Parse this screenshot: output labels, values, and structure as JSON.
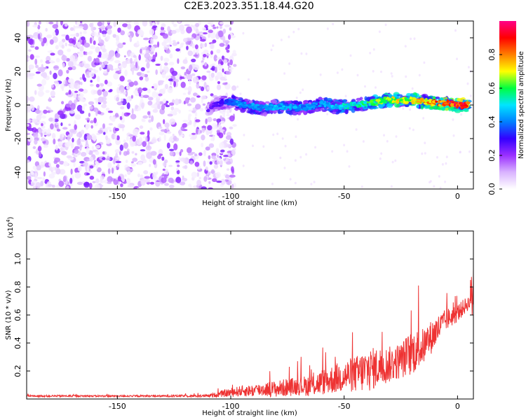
{
  "figure": {
    "title": "C2E3.2023.351.18.44.G20"
  },
  "chart_data": [
    {
      "type": "heatmap",
      "xlabel": "Height of straight line (km)",
      "ylabel": "Frequency (Hz)",
      "xlim": [
        -190,
        7
      ],
      "ylim": [
        -50,
        50
      ],
      "x_ticks": [
        -150,
        -100,
        -50,
        0
      ],
      "x_tick_labels": [
        "-150",
        "-100",
        "-50",
        "0"
      ],
      "y_ticks": [
        -40,
        -20,
        0,
        20,
        40
      ],
      "y_tick_labels": [
        "-40",
        "-20",
        "0",
        "20",
        "40"
      ],
      "colorbar": {
        "label": "Normalized spectral amplitude",
        "range": [
          0,
          1
        ],
        "ticks": [
          0.0,
          0.2,
          0.4,
          0.6,
          0.8
        ],
        "tick_labels": [
          "0.0",
          "0.2",
          "0.4",
          "0.6",
          "0.8"
        ],
        "colormap": [
          "#ffffff",
          "#d9b3ff",
          "#9b30ff",
          "#3300ff",
          "#0080ff",
          "#00e5ff",
          "#00ff40",
          "#ffff00",
          "#ff7f00",
          "#ff0000",
          "#ff0088"
        ]
      },
      "noise_region_x": [
        -190,
        -100
      ],
      "signal_track": {
        "x": [
          -110,
          -105,
          -100,
          -95,
          -90,
          -85,
          -80,
          -75,
          -70,
          -65,
          -60,
          -55,
          -50,
          -45,
          -40,
          -35,
          -30,
          -25,
          -20,
          -15,
          -10,
          -5,
          0,
          5
        ],
        "freq": [
          -2,
          1,
          2,
          0,
          -1,
          -2,
          -1,
          -1,
          -2,
          -1,
          1,
          -1,
          -1,
          0,
          1,
          2,
          3,
          3,
          3,
          2,
          1,
          1,
          0,
          0
        ],
        "amplitude": [
          0.25,
          0.3,
          0.4,
          0.45,
          0.45,
          0.45,
          0.5,
          0.45,
          0.45,
          0.45,
          0.45,
          0.5,
          0.55,
          0.55,
          0.6,
          0.65,
          0.7,
          0.75,
          0.75,
          0.8,
          0.85,
          0.9,
          0.95,
          0.9
        ]
      }
    },
    {
      "type": "line",
      "xlabel": "Height of straight line (km)",
      "ylabel": "SNR (10 * v/v)",
      "y_multiplier_label": "(x10",
      "y_multiplier_exp": "4",
      "y_multiplier_close": ")",
      "xlim": [
        -190,
        7
      ],
      "ylim": [
        0,
        1.2
      ],
      "x_ticks": [
        -150,
        -100,
        -50,
        0
      ],
      "x_tick_labels": [
        "-150",
        "-100",
        "-50",
        "0"
      ],
      "y_ticks": [
        0.2,
        0.4,
        0.6,
        0.8,
        1.0
      ],
      "y_tick_labels": [
        "0.2",
        "0.4",
        "0.6",
        "0.8",
        "1.0"
      ],
      "line_color": "#ee3333",
      "series": [
        {
          "x": [
            -190,
            -170,
            -150,
            -130,
            -110,
            -100,
            -95,
            -90,
            -85,
            -80,
            -75,
            -70,
            -65,
            -60,
            -55,
            -50,
            -45,
            -40,
            -35,
            -30,
            -25,
            -20,
            -15,
            -10,
            -5,
            0,
            5,
            7
          ],
          "baseline": [
            0.02,
            0.02,
            0.02,
            0.02,
            0.02,
            0.04,
            0.05,
            0.05,
            0.06,
            0.06,
            0.07,
            0.08,
            0.08,
            0.1,
            0.12,
            0.14,
            0.15,
            0.17,
            0.2,
            0.22,
            0.25,
            0.3,
            0.35,
            0.45,
            0.55,
            0.6,
            0.68,
            0.72
          ],
          "spread": [
            0.01,
            0.01,
            0.01,
            0.01,
            0.015,
            0.05,
            0.06,
            0.07,
            0.08,
            0.09,
            0.1,
            0.1,
            0.12,
            0.14,
            0.16,
            0.18,
            0.2,
            0.25,
            0.22,
            0.2,
            0.2,
            0.25,
            0.2,
            0.18,
            0.12,
            0.1,
            0.08,
            0.45
          ]
        }
      ]
    }
  ]
}
